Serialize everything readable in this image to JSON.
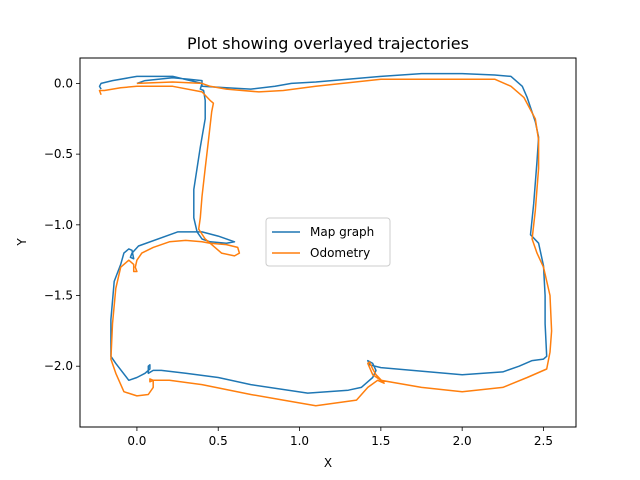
{
  "chart_data": {
    "type": "line",
    "title": "Plot showing overlayed trajectories",
    "xlabel": "X",
    "ylabel": "Y",
    "xlim": [
      -0.35,
      2.7
    ],
    "ylim": [
      -2.43,
      0.18
    ],
    "xticks": [
      0.0,
      0.5,
      1.0,
      1.5,
      2.0,
      2.5
    ],
    "xtick_labels": [
      "0.0",
      "0.5",
      "1.0",
      "1.5",
      "2.0",
      "2.5"
    ],
    "yticks": [
      0.0,
      -0.5,
      -1.0,
      -1.5,
      -2.0
    ],
    "ytick_labels": [
      "0.0",
      "−0.5",
      "−1.0",
      "−1.5",
      "−2.0"
    ],
    "grid": false,
    "legend_position": "center",
    "series": [
      {
        "name": "Map graph",
        "color": "#1f77b4",
        "points": [
          [
            -0.22,
            -0.04
          ],
          [
            -0.23,
            -0.02
          ],
          [
            -0.22,
            0.0
          ],
          [
            -0.15,
            0.02
          ],
          [
            -0.05,
            0.04
          ],
          [
            0.0,
            0.05
          ],
          [
            0.22,
            0.05
          ],
          [
            0.4,
            0.0
          ],
          [
            0.4,
            -0.02
          ],
          [
            0.55,
            -0.03
          ],
          [
            0.7,
            -0.04
          ],
          [
            0.85,
            -0.02
          ],
          [
            0.95,
            0.0
          ],
          [
            1.1,
            0.01
          ],
          [
            1.5,
            0.05
          ],
          [
            1.75,
            0.07
          ],
          [
            2.0,
            0.07
          ],
          [
            2.2,
            0.06
          ],
          [
            2.3,
            0.05
          ],
          [
            2.37,
            -0.02
          ],
          [
            2.4,
            -0.1
          ],
          [
            2.45,
            -0.27
          ],
          [
            2.47,
            -0.38
          ],
          [
            2.46,
            -0.55
          ],
          [
            2.44,
            -0.85
          ],
          [
            2.42,
            -1.07
          ],
          [
            2.47,
            -1.13
          ],
          [
            2.5,
            -1.29
          ],
          [
            2.51,
            -1.5
          ],
          [
            2.51,
            -1.7
          ],
          [
            2.52,
            -1.93
          ],
          [
            2.5,
            -1.95
          ],
          [
            2.43,
            -1.96
          ],
          [
            2.35,
            -2.0
          ],
          [
            2.25,
            -2.04
          ],
          [
            2.0,
            -2.06
          ],
          [
            1.5,
            -2.01
          ],
          [
            1.43,
            -1.99
          ],
          [
            1.42,
            -1.96
          ],
          [
            1.45,
            -1.98
          ],
          [
            1.47,
            -2.03
          ],
          [
            1.45,
            -2.08
          ],
          [
            1.38,
            -2.15
          ],
          [
            1.3,
            -2.17
          ],
          [
            1.05,
            -2.19
          ],
          [
            0.7,
            -2.13
          ],
          [
            0.5,
            -2.08
          ],
          [
            0.3,
            -2.05
          ],
          [
            0.15,
            -2.03
          ],
          [
            0.1,
            -2.03
          ],
          [
            0.07,
            -2.05
          ],
          [
            0.07,
            -2.0
          ],
          [
            0.08,
            -1.99
          ],
          [
            0.08,
            -2.02
          ],
          [
            0.05,
            -2.05
          ],
          [
            0.0,
            -2.08
          ],
          [
            -0.05,
            -2.1
          ],
          [
            -0.13,
            -1.98
          ],
          [
            -0.16,
            -1.93
          ],
          [
            -0.16,
            -1.67
          ],
          [
            -0.14,
            -1.4
          ],
          [
            -0.1,
            -1.28
          ],
          [
            -0.08,
            -1.2
          ],
          [
            -0.05,
            -1.17
          ],
          [
            -0.03,
            -1.18
          ],
          [
            -0.02,
            -1.24
          ],
          [
            -0.04,
            -1.23
          ],
          [
            -0.03,
            -1.2
          ],
          [
            0.01,
            -1.15
          ],
          [
            0.25,
            -1.05
          ],
          [
            0.4,
            -1.05
          ],
          [
            0.5,
            -1.08
          ],
          [
            0.6,
            -1.12
          ],
          [
            0.55,
            -1.13
          ],
          [
            0.45,
            -1.12
          ],
          [
            0.4,
            -1.1
          ],
          [
            0.37,
            -1.05
          ],
          [
            0.35,
            -0.95
          ],
          [
            0.35,
            -0.75
          ],
          [
            0.39,
            -0.45
          ],
          [
            0.42,
            -0.25
          ],
          [
            0.42,
            -0.12
          ],
          [
            0.41,
            -0.05
          ],
          [
            0.39,
            -0.04
          ],
          [
            0.4,
            0.0
          ],
          [
            0.4,
            0.02
          ],
          [
            0.32,
            0.03
          ],
          [
            0.22,
            0.04
          ],
          [
            0.05,
            0.02
          ],
          [
            0.0,
            0.0
          ]
        ]
      },
      {
        "name": "Odometry",
        "color": "#ff7f0e",
        "points": [
          [
            -0.22,
            -0.08
          ],
          [
            -0.23,
            -0.05
          ],
          [
            -0.2,
            -0.05
          ],
          [
            -0.1,
            -0.03
          ],
          [
            0.0,
            -0.02
          ],
          [
            0.22,
            -0.02
          ],
          [
            0.4,
            -0.06
          ],
          [
            0.45,
            -0.12
          ],
          [
            0.47,
            -0.14
          ],
          [
            0.46,
            -0.2
          ],
          [
            0.44,
            -0.4
          ],
          [
            0.42,
            -0.6
          ],
          [
            0.4,
            -0.8
          ],
          [
            0.39,
            -0.95
          ],
          [
            0.38,
            -1.03
          ],
          [
            0.42,
            -1.1
          ],
          [
            0.48,
            -1.16
          ],
          [
            0.52,
            -1.2
          ],
          [
            0.6,
            -1.22
          ],
          [
            0.63,
            -1.2
          ],
          [
            0.62,
            -1.16
          ],
          [
            0.55,
            -1.14
          ],
          [
            0.45,
            -1.13
          ],
          [
            0.4,
            -1.12
          ],
          [
            0.3,
            -1.11
          ],
          [
            0.2,
            -1.12
          ],
          [
            0.1,
            -1.16
          ],
          [
            0.03,
            -1.2
          ],
          [
            0.0,
            -1.25
          ],
          [
            -0.01,
            -1.3
          ],
          [
            0.0,
            -1.33
          ],
          [
            -0.02,
            -1.33
          ],
          [
            -0.02,
            -1.28
          ],
          [
            -0.05,
            -1.25
          ],
          [
            -0.1,
            -1.3
          ],
          [
            -0.13,
            -1.45
          ],
          [
            -0.15,
            -1.7
          ],
          [
            -0.16,
            -1.95
          ],
          [
            -0.13,
            -2.05
          ],
          [
            -0.08,
            -2.18
          ],
          [
            0.0,
            -2.21
          ],
          [
            0.07,
            -2.2
          ],
          [
            0.1,
            -2.15
          ],
          [
            0.1,
            -2.1
          ],
          [
            0.08,
            -2.09
          ],
          [
            0.08,
            -2.11
          ],
          [
            0.1,
            -2.1
          ],
          [
            0.2,
            -2.1
          ],
          [
            0.4,
            -2.13
          ],
          [
            0.7,
            -2.2
          ],
          [
            0.9,
            -2.24
          ],
          [
            1.1,
            -2.28
          ],
          [
            1.35,
            -2.24
          ],
          [
            1.42,
            -2.15
          ],
          [
            1.48,
            -2.1
          ],
          [
            1.52,
            -2.12
          ],
          [
            1.47,
            -2.06
          ],
          [
            1.45,
            -2.02
          ],
          [
            1.43,
            -1.97
          ],
          [
            1.42,
            -1.98
          ],
          [
            1.45,
            -2.06
          ],
          [
            1.5,
            -2.1
          ],
          [
            1.75,
            -2.15
          ],
          [
            2.0,
            -2.18
          ],
          [
            2.25,
            -2.15
          ],
          [
            2.4,
            -2.08
          ],
          [
            2.52,
            -2.02
          ],
          [
            2.54,
            -1.9
          ],
          [
            2.55,
            -1.75
          ],
          [
            2.54,
            -1.5
          ],
          [
            2.5,
            -1.3
          ],
          [
            2.46,
            -1.2
          ],
          [
            2.43,
            -1.1
          ],
          [
            2.45,
            -0.9
          ],
          [
            2.47,
            -0.6
          ],
          [
            2.47,
            -0.4
          ],
          [
            2.45,
            -0.25
          ],
          [
            2.38,
            -0.1
          ],
          [
            2.3,
            -0.02
          ],
          [
            2.2,
            0.03
          ],
          [
            1.5,
            0.03
          ],
          [
            1.1,
            -0.02
          ],
          [
            0.9,
            -0.05
          ],
          [
            0.75,
            -0.06
          ],
          [
            0.55,
            -0.04
          ],
          [
            0.45,
            -0.02
          ],
          [
            0.4,
            0.0
          ],
          [
            0.22,
            0.01
          ],
          [
            0.0,
            0.0
          ]
        ]
      }
    ]
  }
}
